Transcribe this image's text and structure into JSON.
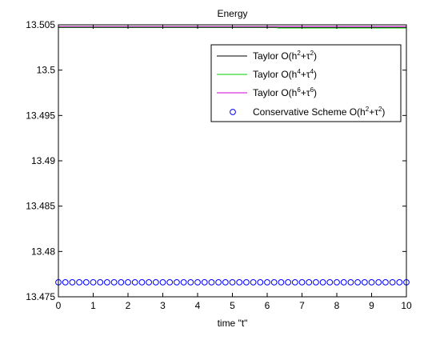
{
  "chart_data": {
    "type": "line",
    "title": "Energy",
    "xlabel": "time \"t\"",
    "ylabel": "",
    "xlim": [
      0,
      10
    ],
    "ylim": [
      13.475,
      13.505
    ],
    "xticks": [
      0,
      1,
      2,
      3,
      4,
      5,
      6,
      7,
      8,
      9,
      10
    ],
    "xtick_labels": [
      "0",
      "1",
      "2",
      "3",
      "4",
      "5",
      "6",
      "7",
      "8",
      "9",
      "10"
    ],
    "yticks": [
      13.475,
      13.48,
      13.485,
      13.49,
      13.495,
      13.5,
      13.505
    ],
    "ytick_labels": [
      "13.475",
      "13.48",
      "13.485",
      "13.49",
      "13.495",
      "13.5",
      "13.505"
    ],
    "grid": false,
    "legend_position": "top-right",
    "series": [
      {
        "name": "Taylor O(h2+τ2)",
        "legend_parts": [
          [
            "Taylor O(h",
            false
          ],
          [
            "2",
            true
          ],
          [
            "+τ",
            false
          ],
          [
            "2",
            true
          ],
          [
            ")",
            false
          ]
        ],
        "color": "#000000",
        "style": "line",
        "x": [
          0,
          10
        ],
        "y": [
          13.5047,
          13.5047
        ]
      },
      {
        "name": "Taylor O(h4+τ4)",
        "legend_parts": [
          [
            "Taylor O(h",
            false
          ],
          [
            "4",
            true
          ],
          [
            "+τ",
            false
          ],
          [
            "4",
            true
          ],
          [
            ")",
            false
          ]
        ],
        "color": "#00cc00",
        "style": "line",
        "x": [
          0,
          6.3,
          6.3,
          10
        ],
        "y": [
          13.50475,
          13.50475,
          13.50465,
          13.50465
        ]
      },
      {
        "name": "Taylor O(h6+τ6)",
        "legend_parts": [
          [
            "Taylor O(h",
            false
          ],
          [
            "6",
            true
          ],
          [
            "+τ",
            false
          ],
          [
            "6",
            true
          ],
          [
            ")",
            false
          ]
        ],
        "color": "#cc00cc",
        "style": "line",
        "x": [
          0,
          10
        ],
        "y": [
          13.5048,
          13.5048
        ]
      },
      {
        "name": "Conservative Scheme O(h2+τ2)",
        "legend_parts": [
          [
            "Conservative Scheme O(h",
            false
          ],
          [
            "2",
            true
          ],
          [
            "+τ",
            false
          ],
          [
            "2",
            true
          ],
          [
            ")",
            false
          ]
        ],
        "color": "#0000ff",
        "style": "markers",
        "x": [
          0,
          0.2,
          0.4,
          0.6,
          0.8,
          1.0,
          1.2,
          1.4,
          1.6,
          1.8,
          2.0,
          2.2,
          2.4,
          2.6,
          2.8,
          3.0,
          3.2,
          3.4,
          3.6,
          3.8,
          4.0,
          4.2,
          4.4,
          4.6,
          4.8,
          5.0,
          5.2,
          5.4,
          5.6,
          5.8,
          6.0,
          6.2,
          6.4,
          6.6,
          6.8,
          7.0,
          7.2,
          7.4,
          7.6,
          7.8,
          8.0,
          8.2,
          8.4,
          8.6,
          8.8,
          9.0,
          9.2,
          9.4,
          9.6,
          9.8,
          10.0
        ],
        "y": [
          13.4766,
          13.4766,
          13.4766,
          13.4766,
          13.4766,
          13.4766,
          13.4766,
          13.4766,
          13.4766,
          13.4766,
          13.4766,
          13.4766,
          13.4766,
          13.4766,
          13.4766,
          13.4766,
          13.4766,
          13.4766,
          13.4766,
          13.4766,
          13.4766,
          13.4766,
          13.4766,
          13.4766,
          13.4766,
          13.4766,
          13.4766,
          13.4766,
          13.4766,
          13.4766,
          13.4766,
          13.4766,
          13.4766,
          13.4766,
          13.4766,
          13.4766,
          13.4766,
          13.4766,
          13.4766,
          13.4766,
          13.4766,
          13.4766,
          13.4766,
          13.4766,
          13.4766,
          13.4766,
          13.4766,
          13.4766,
          13.4766,
          13.4766,
          13.4766
        ]
      }
    ]
  }
}
